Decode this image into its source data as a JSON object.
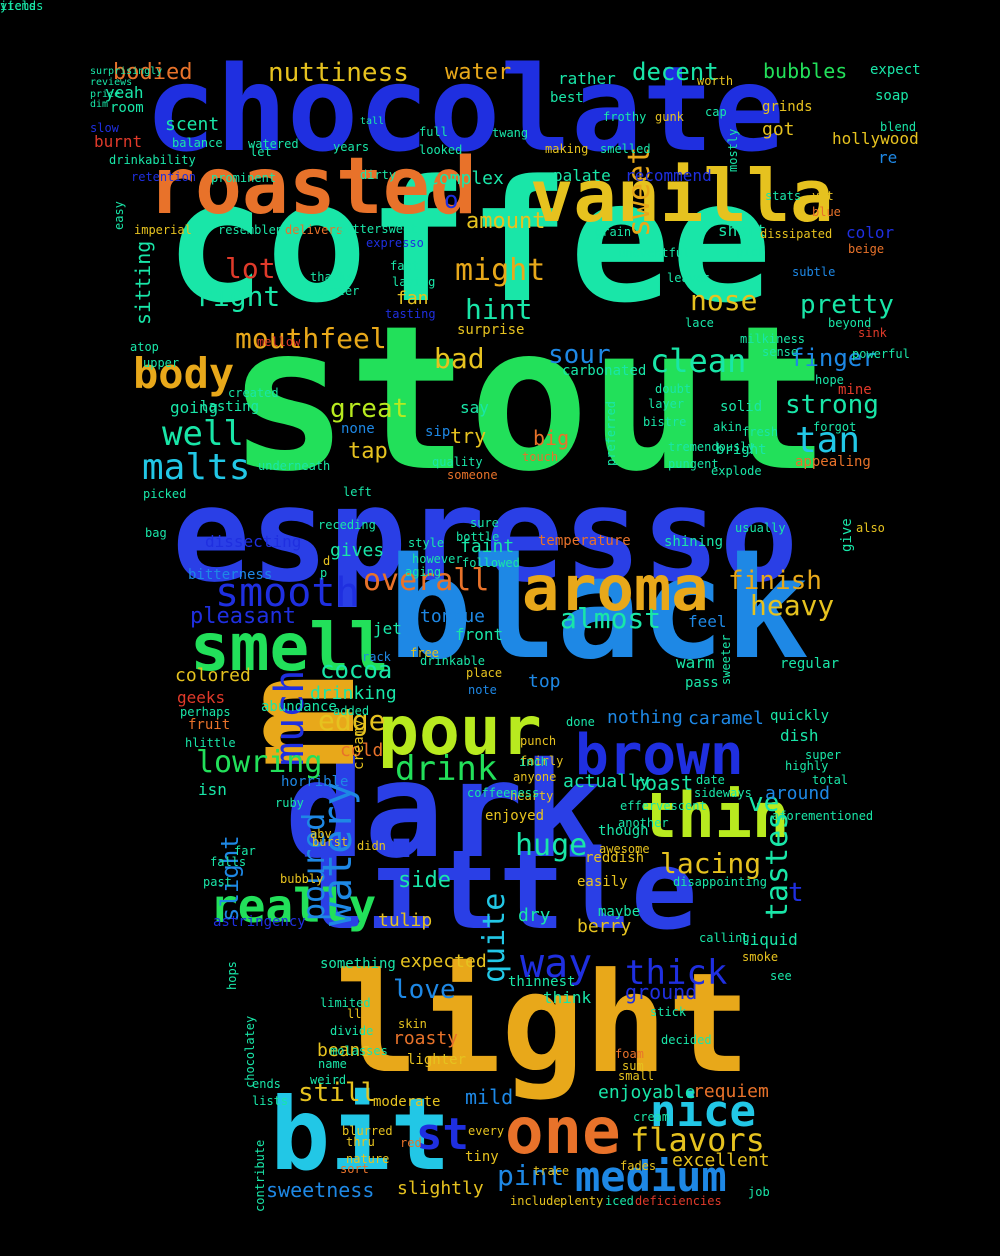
{
  "palette": {
    "blue": "#1f2fe0",
    "royal": "#2a3fe6",
    "sky": "#1e88e5",
    "cyan": "#22c7e6",
    "teal": "#19e6a8",
    "green": "#22e05a",
    "lime": "#b8ea1f",
    "yellow": "#e6c21f",
    "gold": "#e8a81a",
    "orange": "#e8722a",
    "red": "#e03a2a",
    "dark": "#1a2fd0"
  },
  "words": [
    {
      "text": "coffee",
      "color": "teal"
    },
    {
      "text": "stout",
      "color": "green"
    },
    {
      "text": "espresso",
      "color": "royal"
    },
    {
      "text": "chocolate",
      "color": "blue"
    },
    {
      "text": "black",
      "color": "sky"
    },
    {
      "text": "light",
      "color": "gold"
    },
    {
      "text": "dark",
      "color": "royal"
    },
    {
      "text": "bit",
      "color": "cyan"
    },
    {
      "text": "little",
      "color": "royal"
    },
    {
      "text": "roasted",
      "color": "orange"
    },
    {
      "text": "vanilla",
      "color": "yellow"
    },
    {
      "text": "aroma",
      "color": "gold"
    },
    {
      "text": "pour",
      "color": "lime"
    },
    {
      "text": "brown",
      "color": "blue"
    },
    {
      "text": "smell",
      "color": "green"
    },
    {
      "text": "thin",
      "color": "lime"
    },
    {
      "text": "one",
      "color": "orange"
    },
    {
      "text": "m",
      "color": "gold"
    },
    {
      "text": "medium",
      "color": "sky"
    },
    {
      "text": "nice",
      "color": "cyan"
    },
    {
      "text": "really",
      "color": "green"
    },
    {
      "text": "watery",
      "color": "sky"
    },
    {
      "text": "much",
      "color": "blue"
    },
    {
      "text": "malts",
      "color": "cyan"
    },
    {
      "text": "body",
      "color": "gold"
    },
    {
      "text": "smooth",
      "color": "blue"
    },
    {
      "text": "way",
      "color": "blue"
    },
    {
      "text": "tan",
      "color": "cyan"
    },
    {
      "text": "flavors",
      "color": "yellow"
    },
    {
      "text": "drink",
      "color": "green"
    },
    {
      "text": "lowring",
      "color": "green"
    },
    {
      "text": "tastes",
      "color": "teal"
    },
    {
      "text": "thick",
      "color": "blue"
    },
    {
      "text": "huge",
      "color": "teal"
    },
    {
      "text": "overall",
      "color": "orange"
    },
    {
      "text": "poured",
      "color": "sky"
    },
    {
      "text": "quite",
      "color": "cyan"
    },
    {
      "text": "sweet",
      "color": "gold"
    },
    {
      "text": "st",
      "color": "blue"
    },
    {
      "text": "clean",
      "color": "teal"
    },
    {
      "text": "right",
      "color": "teal"
    },
    {
      "text": "might",
      "color": "gold"
    },
    {
      "text": "hint",
      "color": "teal"
    },
    {
      "text": "bad",
      "color": "yellow"
    },
    {
      "text": "well",
      "color": "teal"
    },
    {
      "text": "lot",
      "color": "red"
    },
    {
      "text": "nose",
      "color": "yellow"
    },
    {
      "text": "pretty",
      "color": "teal"
    },
    {
      "text": "mouthfeel",
      "color": "gold"
    },
    {
      "text": "sour",
      "color": "sky"
    },
    {
      "text": "finger",
      "color": "sky"
    },
    {
      "text": "strong",
      "color": "teal"
    },
    {
      "text": "great",
      "color": "lime"
    },
    {
      "text": "edge",
      "color": "yellow"
    },
    {
      "text": "cocoa",
      "color": "teal"
    },
    {
      "text": "finish",
      "color": "gold"
    },
    {
      "text": "heavy",
      "color": "yellow"
    },
    {
      "text": "almost",
      "color": "teal"
    },
    {
      "text": "pleasant",
      "color": "blue"
    },
    {
      "text": "lacing",
      "color": "yellow"
    },
    {
      "text": "side",
      "color": "teal"
    },
    {
      "text": "ve",
      "color": "teal"
    },
    {
      "text": "love",
      "color": "sky"
    },
    {
      "text": "ground",
      "color": "blue"
    },
    {
      "text": "t",
      "color": "blue"
    },
    {
      "text": "still",
      "color": "yellow"
    },
    {
      "text": "mild",
      "color": "sky"
    },
    {
      "text": "pint",
      "color": "sky"
    },
    {
      "text": "slight",
      "color": "sky"
    },
    {
      "text": "around",
      "color": "sky"
    },
    {
      "text": "nuttiness",
      "color": "yellow"
    },
    {
      "text": "bodied",
      "color": "orange"
    },
    {
      "text": "water",
      "color": "gold"
    },
    {
      "text": "decent",
      "color": "teal"
    },
    {
      "text": "bubbles",
      "color": "green"
    },
    {
      "text": "sweetness",
      "color": "sky"
    },
    {
      "text": "slightly",
      "color": "yellow"
    },
    {
      "text": "excellent",
      "color": "yellow"
    },
    {
      "text": "enjoyable",
      "color": "teal"
    },
    {
      "text": "requiem",
      "color": "orange"
    },
    {
      "text": "beans",
      "color": "yellow"
    },
    {
      "text": "roasty",
      "color": "orange"
    },
    {
      "text": "try",
      "color": "yellow"
    },
    {
      "text": "big",
      "color": "orange"
    },
    {
      "text": "tap",
      "color": "yellow"
    },
    {
      "text": "amount",
      "color": "yellow"
    },
    {
      "text": "sitting",
      "color": "teal"
    },
    {
      "text": "fan",
      "color": "yellow"
    },
    {
      "text": "complex",
      "color": "teal"
    },
    {
      "text": "scent",
      "color": "teal"
    },
    {
      "text": "dry",
      "color": "teal"
    },
    {
      "text": "berry",
      "color": "yellow"
    },
    {
      "text": "expected",
      "color": "yellow"
    },
    {
      "text": "tulip",
      "color": "yellow"
    },
    {
      "text": "roast",
      "color": "teal"
    },
    {
      "text": "actually",
      "color": "teal"
    },
    {
      "text": "caramel",
      "color": "sky"
    },
    {
      "text": "nothing",
      "color": "sky"
    },
    {
      "text": "top",
      "color": "sky"
    },
    {
      "text": "cold",
      "color": "orange"
    },
    {
      "text": "drinking",
      "color": "teal"
    },
    {
      "text": "colored",
      "color": "yellow"
    },
    {
      "text": "geeks",
      "color": "red"
    },
    {
      "text": "tongue",
      "color": "sky"
    },
    {
      "text": "front",
      "color": "teal"
    },
    {
      "text": "jet",
      "color": "teal"
    },
    {
      "text": "feel",
      "color": "sky"
    },
    {
      "text": "warm",
      "color": "teal"
    },
    {
      "text": "pass",
      "color": "teal"
    },
    {
      "text": "faint",
      "color": "teal"
    },
    {
      "text": "dissecting",
      "color": "blue"
    },
    {
      "text": "bitterness",
      "color": "sky"
    },
    {
      "text": "temperature",
      "color": "orange"
    },
    {
      "text": "shining",
      "color": "teal"
    },
    {
      "text": "going",
      "color": "teal"
    },
    {
      "text": "lasting",
      "color": "teal"
    },
    {
      "text": "say",
      "color": "teal"
    },
    {
      "text": "none",
      "color": "sky"
    },
    {
      "text": "sip",
      "color": "sky"
    },
    {
      "text": "solid",
      "color": "teal"
    },
    {
      "text": "bright",
      "color": "teal"
    },
    {
      "text": "appealing",
      "color": "orange"
    },
    {
      "text": "carbonated",
      "color": "teal"
    },
    {
      "text": "mine",
      "color": "red"
    },
    {
      "text": "surprise",
      "color": "yellow"
    },
    {
      "text": "rather",
      "color": "teal"
    },
    {
      "text": "best",
      "color": "teal"
    },
    {
      "text": "got",
      "color": "yellow"
    },
    {
      "text": "grinds",
      "color": "yellow"
    },
    {
      "text": "hollywood",
      "color": "yellow"
    },
    {
      "text": "re",
      "color": "sky"
    },
    {
      "text": "expect",
      "color": "teal"
    },
    {
      "text": "soap",
      "color": "teal"
    },
    {
      "text": "yeah",
      "color": "teal"
    },
    {
      "text": "room",
      "color": "teal"
    },
    {
      "text": "burnt",
      "color": "red"
    },
    {
      "text": "palate",
      "color": "teal"
    },
    {
      "text": "recommend",
      "color": "blue"
    },
    {
      "text": "short",
      "color": "teal"
    },
    {
      "text": "color",
      "color": "blue"
    },
    {
      "text": "regular",
      "color": "teal"
    },
    {
      "text": "quickly",
      "color": "teal"
    },
    {
      "text": "dish",
      "color": "teal"
    },
    {
      "text": "abundance",
      "color": "teal"
    },
    {
      "text": "fruit",
      "color": "orange"
    },
    {
      "text": "horrible",
      "color": "sky"
    },
    {
      "text": "isn",
      "color": "teal"
    },
    {
      "text": "creamy",
      "color": "yellow"
    },
    {
      "text": "enjoyed",
      "color": "yellow"
    },
    {
      "text": "though",
      "color": "teal"
    },
    {
      "text": "reddish",
      "color": "yellow"
    },
    {
      "text": "easily",
      "color": "yellow"
    },
    {
      "text": "liquid",
      "color": "teal"
    },
    {
      "text": "maybe",
      "color": "teal"
    },
    {
      "text": "give",
      "color": "teal"
    },
    {
      "text": "something",
      "color": "teal"
    },
    {
      "text": "thinnest",
      "color": "teal"
    },
    {
      "text": "think",
      "color": "teal"
    },
    {
      "text": "lighter",
      "color": "yellow"
    },
    {
      "text": "skin",
      "color": "yellow"
    },
    {
      "text": "moderate",
      "color": "yellow"
    },
    {
      "text": "every",
      "color": "yellow"
    },
    {
      "text": "tiny",
      "color": "yellow"
    },
    {
      "text": "fades",
      "color": "yellow"
    },
    {
      "text": "iced",
      "color": "teal"
    },
    {
      "text": "deficiencies",
      "color": "red"
    },
    {
      "text": "include",
      "color": "yellow"
    },
    {
      "text": "plenty",
      "color": "yellow"
    },
    {
      "text": "disappointing",
      "color": "teal"
    },
    {
      "text": "astringency",
      "color": "blue"
    },
    {
      "text": "fact",
      "color": "teal"
    },
    {
      "text": "laying",
      "color": "teal"
    },
    {
      "text": "thanks",
      "color": "teal"
    },
    {
      "text": "bitter",
      "color": "teal"
    },
    {
      "text": "tasting",
      "color": "blue"
    },
    {
      "text": "imperial",
      "color": "yellow"
    },
    {
      "text": "resemblence",
      "color": "teal"
    },
    {
      "text": "delivers",
      "color": "orange"
    },
    {
      "text": "bittersweet",
      "color": "teal"
    },
    {
      "text": "expresso",
      "color": "blue"
    },
    {
      "text": "easy",
      "color": "teal"
    },
    {
      "text": "retention",
      "color": "blue"
    },
    {
      "text": "prominent",
      "color": "teal"
    },
    {
      "text": "drinkability",
      "color": "teal"
    },
    {
      "text": "dirty",
      "color": "teal"
    },
    {
      "text": "grain",
      "color": "teal"
    },
    {
      "text": "dissipated",
      "color": "yellow"
    },
    {
      "text": "uneventful",
      "color": "teal"
    },
    {
      "text": "pick",
      "color": "teal"
    },
    {
      "text": "beige",
      "color": "orange"
    },
    {
      "text": "leaves",
      "color": "teal"
    },
    {
      "text": "subtle",
      "color": "sky"
    },
    {
      "text": "beyond",
      "color": "teal"
    },
    {
      "text": "lace",
      "color": "teal"
    },
    {
      "text": "milkiness",
      "color": "teal"
    },
    {
      "text": "sense",
      "color": "teal"
    },
    {
      "text": "powerful",
      "color": "teal"
    },
    {
      "text": "sink",
      "color": "red"
    },
    {
      "text": "hope",
      "color": "teal"
    },
    {
      "text": "doubt",
      "color": "teal"
    },
    {
      "text": "layer",
      "color": "teal"
    },
    {
      "text": "bistre",
      "color": "teal"
    },
    {
      "text": "akin",
      "color": "teal"
    },
    {
      "text": "fresh",
      "color": "teal"
    },
    {
      "text": "forgot",
      "color": "teal"
    },
    {
      "text": "tremendously",
      "color": "teal"
    },
    {
      "text": "pungent",
      "color": "teal"
    },
    {
      "text": "explode",
      "color": "teal"
    },
    {
      "text": "preferred",
      "color": "teal"
    },
    {
      "text": "quality",
      "color": "teal"
    },
    {
      "text": "someone",
      "color": "orange"
    },
    {
      "text": "touch",
      "color": "orange"
    },
    {
      "text": "sure",
      "color": "teal"
    },
    {
      "text": "bottle",
      "color": "teal"
    },
    {
      "text": "followed",
      "color": "teal"
    },
    {
      "text": "usually",
      "color": "teal"
    },
    {
      "text": "left",
      "color": "teal"
    },
    {
      "text": "underneath",
      "color": "teal"
    },
    {
      "text": "picked",
      "color": "teal"
    },
    {
      "text": "mellow",
      "color": "red"
    },
    {
      "text": "upper",
      "color": "teal"
    },
    {
      "text": "atop",
      "color": "teal"
    },
    {
      "text": "created",
      "color": "teal"
    },
    {
      "text": "note",
      "color": "sky"
    },
    {
      "text": "punch",
      "color": "yellow"
    },
    {
      "text": "fairly",
      "color": "yellow"
    },
    {
      "text": "inch",
      "color": "teal"
    },
    {
      "text": "anyone",
      "color": "yellow"
    },
    {
      "text": "hearty",
      "color": "yellow"
    },
    {
      "text": "coffeeness",
      "color": "teal"
    },
    {
      "text": "another",
      "color": "teal"
    },
    {
      "text": "awesome",
      "color": "yellow"
    },
    {
      "text": "effervescent",
      "color": "teal"
    },
    {
      "text": "date",
      "color": "teal"
    },
    {
      "text": "sideways",
      "color": "teal"
    },
    {
      "text": "aforementioned",
      "color": "teal"
    },
    {
      "text": "highly",
      "color": "teal"
    },
    {
      "text": "super",
      "color": "teal"
    },
    {
      "text": "total",
      "color": "teal"
    },
    {
      "text": "abv",
      "color": "yellow"
    },
    {
      "text": "burst",
      "color": "yellow"
    },
    {
      "text": "didn",
      "color": "yellow"
    },
    {
      "text": "bubbly",
      "color": "yellow"
    },
    {
      "text": "past",
      "color": "teal"
    },
    {
      "text": "falls",
      "color": "teal"
    },
    {
      "text": "far",
      "color": "teal"
    },
    {
      "text": "limited",
      "color": "teal"
    },
    {
      "text": "divide",
      "color": "teal"
    },
    {
      "text": "molasses",
      "color": "teal"
    },
    {
      "text": "weird",
      "color": "teal"
    },
    {
      "text": "name",
      "color": "teal"
    },
    {
      "text": "thru",
      "color": "yellow"
    },
    {
      "text": "nature",
      "color": "yellow"
    },
    {
      "text": "sort",
      "color": "orange"
    },
    {
      "text": "red",
      "color": "orange"
    },
    {
      "text": "blurred",
      "color": "yellow"
    },
    {
      "text": "contribute",
      "color": "teal"
    },
    {
      "text": "chocolatey",
      "color": "teal"
    },
    {
      "text": "hops",
      "color": "teal"
    },
    {
      "text": "ends",
      "color": "teal"
    },
    {
      "text": "lists",
      "color": "teal"
    },
    {
      "text": "ll",
      "color": "yellow"
    },
    {
      "text": "calling",
      "color": "teal"
    },
    {
      "text": "smoke",
      "color": "yellow"
    },
    {
      "text": "see",
      "color": "teal"
    },
    {
      "text": "trace",
      "color": "yellow"
    },
    {
      "text": "job",
      "color": "teal"
    },
    {
      "text": "small",
      "color": "yellow"
    },
    {
      "text": "sum",
      "color": "yellow"
    },
    {
      "text": "foam",
      "color": "orange"
    },
    {
      "text": "decided",
      "color": "teal"
    },
    {
      "text": "stick",
      "color": "teal"
    },
    {
      "text": "cream",
      "color": "teal"
    },
    {
      "text": "worth",
      "color": "yellow"
    },
    {
      "text": "frothy",
      "color": "teal"
    },
    {
      "text": "gunk",
      "color": "yellow"
    },
    {
      "text": "cap",
      "color": "teal"
    },
    {
      "text": "mostly",
      "color": "teal"
    },
    {
      "text": "stats",
      "color": "teal"
    },
    {
      "text": "yet",
      "color": "yellow"
    },
    {
      "text": "twang",
      "color": "teal"
    },
    {
      "text": "making",
      "color": "yellow"
    },
    {
      "text": "smelled",
      "color": "teal"
    },
    {
      "text": "full",
      "color": "teal"
    },
    {
      "text": "looked",
      "color": "teal"
    },
    {
      "text": "balance",
      "color": "teal"
    },
    {
      "text": "watered",
      "color": "teal"
    },
    {
      "text": "years",
      "color": "teal"
    },
    {
      "text": "blend",
      "color": "teal"
    },
    {
      "text": "blue",
      "color": "orange"
    },
    {
      "text": "ruby",
      "color": "teal"
    },
    {
      "text": "bag",
      "color": "teal"
    },
    {
      "text": "hlittle",
      "color": "teal"
    },
    {
      "text": "perhaps",
      "color": "teal"
    },
    {
      "text": "aging",
      "color": "teal"
    },
    {
      "text": "however",
      "color": "teal"
    },
    {
      "text": "style",
      "color": "teal"
    },
    {
      "text": "done",
      "color": "teal"
    },
    {
      "text": "sweeter",
      "color": "teal"
    },
    {
      "text": "place",
      "color": "yellow"
    },
    {
      "text": "drinkable",
      "color": "teal"
    },
    {
      "text": "rack",
      "color": "sky"
    },
    {
      "text": "free",
      "color": "yellow"
    },
    {
      "text": "added",
      "color": "teal"
    },
    {
      "text": "also",
      "color": "yellow"
    },
    {
      "text": "receding",
      "color": "teal"
    },
    {
      "text": "gives",
      "color": "teal"
    },
    {
      "text": "let",
      "color": "teal"
    },
    {
      "text": "o",
      "color": "blue"
    },
    {
      "text": "p",
      "color": "teal"
    },
    {
      "text": "d",
      "color": "yellow"
    },
    {
      "text": "tall",
      "color": "teal"
    },
    {
      "text": "slow",
      "color": "blue"
    },
    {
      "text": "surprisingly",
      "color": "teal"
    },
    {
      "text": "reviews",
      "color": "teal"
    },
    {
      "text": "dim",
      "color": "teal"
    },
    {
      "text": "price",
      "color": "teal"
    },
    {
      "text": "yields",
      "color": "teal"
    },
    {
      "text": "items",
      "color": "teal"
    }
  ]
}
